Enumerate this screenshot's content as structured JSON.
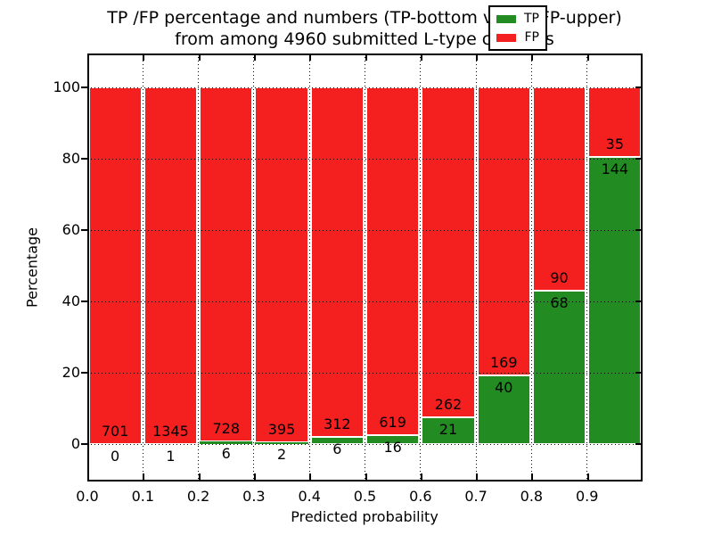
{
  "figure": {
    "title_line1": "TP /FP percentage and numbers (TP-bottom value, FP-upper)",
    "title_line2": "from among 4960 submitted L-type contacts",
    "xlabel": "Predicted probability",
    "ylabel": "Percentage"
  },
  "colors": {
    "tp_green": "#228b22",
    "fp_red": "#f42020",
    "grid": "#000000",
    "background": "#ffffff",
    "bar_edge": "#ffffff"
  },
  "legend": {
    "position": "upper right",
    "items": [
      {
        "name": "TP",
        "color": "#228b22"
      },
      {
        "name": "FP",
        "color": "#f42020"
      }
    ]
  },
  "axes": {
    "x_tick_labels": [
      "0.0",
      "0.1",
      "0.2",
      "0.3",
      "0.4",
      "0.5",
      "0.6",
      "0.7",
      "0.8",
      "0.9"
    ],
    "y_tick_labels": [
      "0",
      "20",
      "40",
      "60",
      "80",
      "100"
    ],
    "y_tick_values": [
      0,
      20,
      40,
      60,
      80,
      100
    ]
  },
  "chart_data": {
    "type": "bar",
    "stacked": true,
    "normalized": "percent of bin total",
    "title": "TP /FP percentage and numbers (TP-bottom value, FP-upper) from among 4960 submitted L-type contacts",
    "xlabel": "Predicted probability",
    "ylabel": "Percentage",
    "xlim": [
      0.0,
      1.0
    ],
    "ylim": [
      -10.5,
      109.5
    ],
    "grid": true,
    "legend_position": "upper right",
    "bin_edges": [
      0.0,
      0.1,
      0.2,
      0.3,
      0.4,
      0.5,
      0.6,
      0.7,
      0.8,
      0.9,
      1.0
    ],
    "categories": [
      "0.0-0.1",
      "0.1-0.2",
      "0.2-0.3",
      "0.3-0.4",
      "0.4-0.5",
      "0.5-0.6",
      "0.6-0.7",
      "0.7-0.8",
      "0.8-0.9",
      "0.9-1.0"
    ],
    "series": [
      {
        "name": "TP",
        "color": "#228b22",
        "counts": [
          0,
          1,
          6,
          2,
          6,
          16,
          21,
          40,
          68,
          144
        ],
        "percent": [
          0.0,
          0.07,
          0.82,
          0.5,
          1.89,
          2.52,
          7.42,
          19.14,
          43.04,
          80.45
        ]
      },
      {
        "name": "FP",
        "color": "#f42020",
        "counts": [
          701,
          1345,
          728,
          395,
          312,
          619,
          262,
          169,
          90,
          35
        ],
        "percent": [
          100.0,
          99.93,
          99.18,
          99.5,
          98.11,
          97.48,
          92.58,
          80.86,
          56.96,
          19.55
        ]
      }
    ],
    "total_submitted": 4960
  }
}
